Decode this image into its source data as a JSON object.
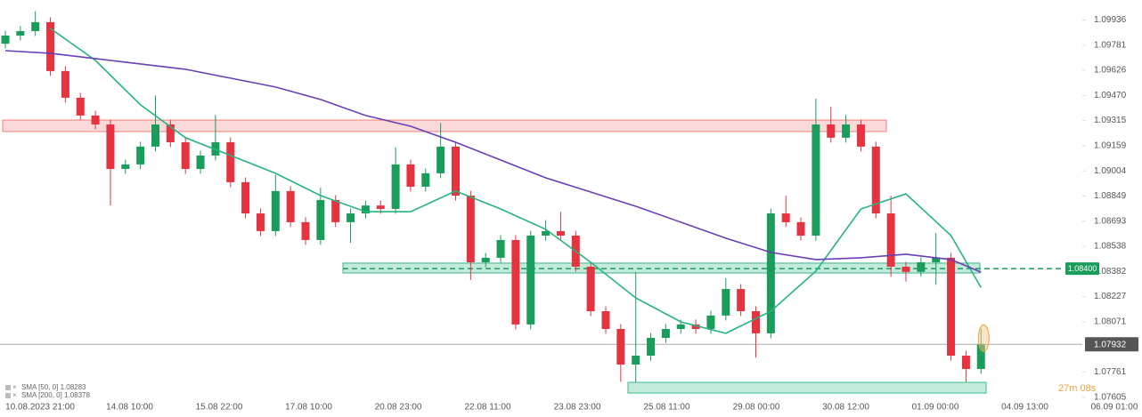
{
  "chart_data": {
    "type": "candlestick",
    "ylim": [
      1.0756,
      1.1006
    ],
    "yticks": [
      1.09936,
      1.09781,
      1.09626,
      {
        "value": 1.0947,
        "label": "1.09470"
      },
      1.09315,
      1.09159,
      1.09004,
      1.08849,
      1.08693,
      1.08538,
      1.08382,
      1.08227,
      1.08071,
      1.07761,
      1.07605
    ],
    "x_labels": [
      "10.08.2023 21:00",
      "14.08 10:00",
      "15.08 22:00",
      "17.08 10:00",
      "20.08 23:00",
      "22.08 11:00",
      "23.08 23:00",
      "25.08 11:00",
      "29.08 00:00",
      "30.08 12:00",
      "01.09 00:00",
      "04.09 13:00",
      "06.09 01:00"
    ],
    "up_color": "#1a9c5b",
    "down_color": "#e5333f",
    "open": [
      1.0979,
      1.0984,
      1.09868,
      1.09923,
      1.09621,
      1.09456,
      1.09346,
      1.09291,
      1.09016,
      1.09044,
      1.09154,
      1.09291,
      1.09181,
      1.09016,
      1.09099,
      1.09181,
      1.08934,
      1.08741,
      1.08632,
      1.08879,
      1.08687,
      1.08577,
      1.08824,
      1.08687,
      1.08741,
      1.0879,
      1.08769,
      1.09044,
      1.08906,
      1.08989,
      1.09154,
      1.08851,
      1.08439,
      1.08467,
      1.08577,
      1.08055,
      1.08604,
      1.08632,
      1.08604,
      1.08412,
      1.08137,
      1.08027,
      1.07807,
      1.07862,
      1.07972,
      1.08027,
      1.08055,
      1.08027,
      1.0811,
      1.08274,
      1.08137,
      1.08,
      1.08741,
      1.08687,
      1.08604,
      1.09291,
      1.09209,
      1.09291,
      1.09154,
      1.08741,
      1.08412,
      1.0838,
      1.08439,
      1.08467,
      1.07862,
      1.0778
    ],
    "high": [
      1.0987,
      1.09898,
      1.0999,
      1.09953,
      1.09651,
      1.09486,
      1.09376,
      1.09321,
      1.09074,
      1.09184,
      1.0947,
      1.09321,
      1.09211,
      1.09129,
      1.0935,
      1.09211,
      1.08964,
      1.08771,
      1.0898,
      1.08909,
      1.08717,
      1.089,
      1.08854,
      1.08771,
      1.0882,
      1.0882,
      1.0915,
      1.09074,
      1.09019,
      1.093,
      1.09184,
      1.08881,
      1.08497,
      1.08607,
      1.08607,
      1.08634,
      1.087,
      1.0875,
      1.08634,
      1.08442,
      1.08167,
      1.08057,
      1.0838,
      1.08002,
      1.08057,
      1.08085,
      1.08085,
      1.0814,
      1.0834,
      1.08304,
      1.08167,
      1.08771,
      1.0885,
      1.08717,
      1.0945,
      1.094,
      1.0935,
      1.09321,
      1.09184,
      1.0885,
      1.08442,
      1.08469,
      1.0862,
      1.08497,
      1.07892,
      1.0803
    ],
    "low": [
      1.0976,
      1.0981,
      1.09838,
      1.09591,
      1.09426,
      1.09316,
      1.09261,
      1.0879,
      1.08986,
      1.09014,
      1.09124,
      1.09151,
      1.08986,
      1.08986,
      1.09069,
      1.08904,
      1.08711,
      1.08602,
      1.08602,
      1.08657,
      1.08547,
      1.08547,
      1.08657,
      1.0856,
      1.08711,
      1.08739,
      1.08739,
      1.08876,
      1.08876,
      1.08959,
      1.08821,
      1.0833,
      1.08409,
      1.08437,
      1.08025,
      1.08025,
      1.08574,
      1.08574,
      1.08382,
      1.08107,
      1.07997,
      1.077,
      1.077,
      1.07832,
      1.07942,
      1.07997,
      1.07997,
      1.07997,
      1.0808,
      1.08107,
      1.0785,
      1.0797,
      1.08657,
      1.08574,
      1.08574,
      1.09179,
      1.09179,
      1.09124,
      1.08711,
      1.0835,
      1.0832,
      1.0835,
      1.083,
      1.07832,
      1.077,
      1.0775
    ],
    "close": [
      1.0984,
      1.09868,
      1.09923,
      1.09621,
      1.09456,
      1.09346,
      1.09291,
      1.09016,
      1.09044,
      1.09154,
      1.09291,
      1.09181,
      1.09016,
      1.09099,
      1.09181,
      1.08934,
      1.08741,
      1.08632,
      1.08879,
      1.08687,
      1.08577,
      1.08824,
      1.08687,
      1.08741,
      1.0879,
      1.08769,
      1.09044,
      1.08906,
      1.08989,
      1.09154,
      1.08851,
      1.08439,
      1.08467,
      1.08577,
      1.08055,
      1.08604,
      1.08632,
      1.08604,
      1.08412,
      1.08137,
      1.08027,
      1.07807,
      1.07862,
      1.07972,
      1.08027,
      1.08055,
      1.08027,
      1.0811,
      1.08274,
      1.08137,
      1.08,
      1.08741,
      1.08687,
      1.08604,
      1.09291,
      1.09209,
      1.09291,
      1.09154,
      1.08741,
      1.08412,
      1.0838,
      1.08439,
      1.08467,
      1.07862,
      1.0778,
      1.07932
    ],
    "sma": [
      {
        "name": "SMA [50, 0] 1.08283",
        "color": "#26b37f",
        "x": [
          3,
          6,
          9,
          12,
          15,
          18,
          21,
          24,
          27,
          30,
          33,
          36,
          39,
          42,
          45,
          48,
          51,
          54,
          57,
          60,
          63,
          65
        ],
        "values": [
          1.09884,
          1.09687,
          1.09412,
          1.09209,
          1.09099,
          1.08989,
          1.08851,
          1.08752,
          1.08752,
          1.08879,
          1.08769,
          1.08643,
          1.08439,
          1.08219,
          1.08071,
          1.08,
          1.08137,
          1.08384,
          1.08769,
          1.08862,
          1.08604,
          1.08283
        ]
      },
      {
        "name": "SMA [200, 0] 1.08378",
        "color": "#6a3fb5",
        "x": [
          0,
          3,
          6,
          9,
          12,
          15,
          18,
          21,
          24,
          27,
          30,
          33,
          36,
          39,
          42,
          45,
          48,
          51,
          54,
          57,
          60,
          63,
          65
        ],
        "values": [
          1.09747,
          1.09731,
          1.09698,
          1.09665,
          1.09632,
          1.09577,
          1.09522,
          1.09445,
          1.09346,
          1.0928,
          1.09181,
          1.09071,
          1.08961,
          1.08873,
          1.08785,
          1.08687,
          1.08588,
          1.085,
          1.08456,
          1.08467,
          1.08489,
          1.08456,
          1.08378
        ]
      }
    ],
    "zones": [
      {
        "top": 1.09318,
        "bottom": 1.09247,
        "color": "#f08080"
      },
      {
        "top": 1.08434,
        "bottom": 1.08373,
        "color": "#3cb88a"
      },
      {
        "top": 1.07697,
        "bottom": 1.07631,
        "color": "#3cb88a"
      }
    ],
    "level": {
      "value": 1.084,
      "label": "1.08400"
    },
    "current_price": 1.07932,
    "timer": "27m 08s"
  }
}
